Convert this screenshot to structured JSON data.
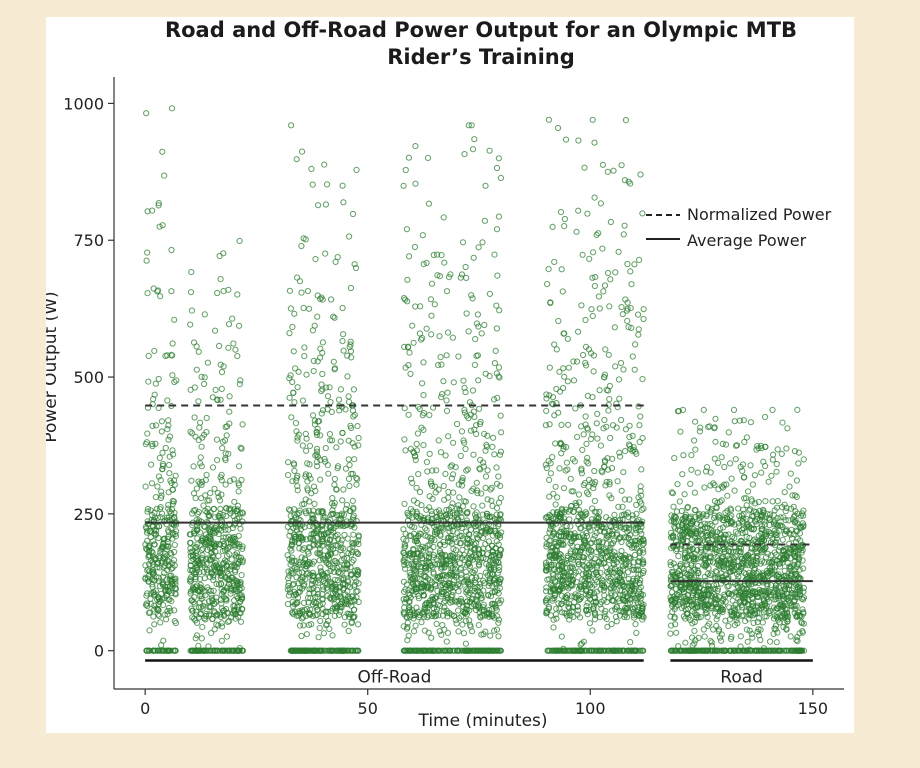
{
  "chart_data": {
    "type": "scatter",
    "title_lines": [
      "Road and Off-Road Power Output for an Olympic MTB",
      "Rider’s Training"
    ],
    "xlabel": "Time (minutes)",
    "ylabel": "Power Output (W)",
    "xlim": [
      -7,
      157
    ],
    "ylim": [
      -70,
      1030
    ],
    "xticks": [
      0,
      50,
      100,
      150
    ],
    "yticks": [
      0,
      250,
      500,
      750,
      1000
    ],
    "grid": false,
    "legend": {
      "position": "right",
      "entries": [
        {
          "label": "Normalized Power",
          "style": "dashed"
        },
        {
          "label": "Average Power",
          "style": "solid"
        }
      ]
    },
    "colors": {
      "points": "#2e7d32",
      "lines": "#3a3a3a"
    },
    "series": [
      {
        "type": "scatter",
        "description_segments": [
          {
            "x_start": 0,
            "x_end": 22,
            "bursts": [
              [
                0,
                7,
                1000
              ],
              [
                10,
                22,
                760
              ]
            ]
          },
          {
            "x_start": 27,
            "x_end": 49,
            "bursts": [
              [
                32,
                48,
                960
              ]
            ]
          },
          {
            "x_start": 57,
            "x_end": 80,
            "bursts": [
              [
                58,
                80,
                960
              ]
            ]
          },
          {
            "x_start": 88,
            "x_end": 112,
            "bursts": [
              [
                90,
                112,
                970
              ]
            ]
          },
          {
            "x_start": 118,
            "x_end": 150,
            "bursts": [
              [
                118,
                148,
                440
              ]
            ]
          }
        ]
      }
    ],
    "reference_lines": [
      {
        "segment": "Off-Road",
        "type": "Normalized Power",
        "x": [
          0,
          112
        ],
        "y": 448
      },
      {
        "segment": "Off-Road",
        "type": "Average Power",
        "x": [
          0,
          112
        ],
        "y": 234
      },
      {
        "segment": "Road",
        "type": "Normalized Power",
        "x": [
          118,
          150
        ],
        "y": 194
      },
      {
        "segment": "Road",
        "type": "Average Power",
        "x": [
          118,
          150
        ],
        "y": 127
      }
    ],
    "segments": [
      {
        "label": "Off-Road",
        "x": [
          0,
          112
        ]
      },
      {
        "label": "Road",
        "x": [
          118,
          150
        ]
      }
    ]
  }
}
